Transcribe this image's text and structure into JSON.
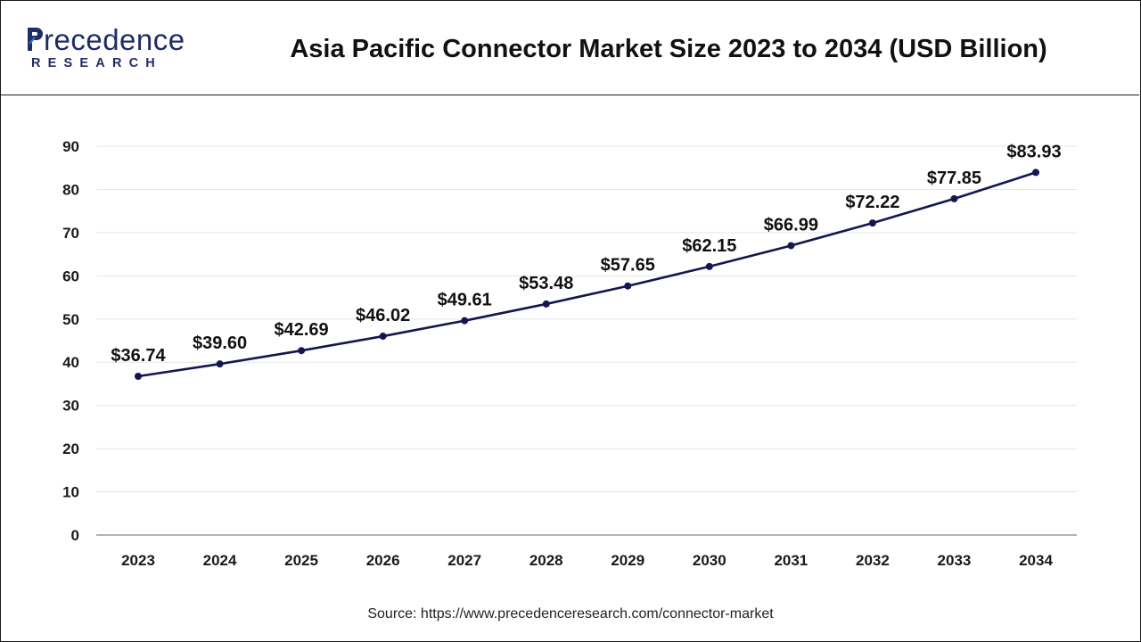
{
  "header": {
    "logo_main": "Precedence",
    "logo_sub": "RESEARCH",
    "title": "Asia Pacific Connector Market Size 2023 to 2034 (USD Billion)"
  },
  "colors": {
    "line": "#14164f",
    "marker": "#14164f",
    "axis": "#9a9a9a",
    "grid": "#e6e6e6",
    "logo": "#1f2d66",
    "logo_accent": "#2f74c9"
  },
  "chart_data": {
    "type": "line",
    "title": "Asia Pacific Connector Market Size 2023 to 2034 (USD Billion)",
    "xlabel": "",
    "ylabel": "",
    "categories": [
      "2023",
      "2024",
      "2025",
      "2026",
      "2027",
      "2028",
      "2029",
      "2030",
      "2031",
      "2032",
      "2033",
      "2034"
    ],
    "series": [
      {
        "values": [
          36.74,
          39.6,
          42.69,
          46.02,
          49.61,
          53.48,
          57.65,
          62.15,
          66.99,
          72.22,
          77.85,
          83.93
        ],
        "labels": [
          "$36.74",
          "$39.60",
          "$42.69",
          "$46.02",
          "$49.61",
          "$53.48",
          "$57.65",
          "$62.15",
          "$66.99",
          "$72.22",
          "$77.85",
          "$83.93"
        ]
      }
    ],
    "ylim": [
      0,
      90
    ],
    "yticks": [
      "0",
      "10",
      "20",
      "30",
      "40",
      "50",
      "60",
      "70",
      "80",
      "90"
    ],
    "grid": true,
    "legend": "none"
  },
  "footer": {
    "source": "Source: https://www.precedenceresearch.com/connector-market"
  }
}
